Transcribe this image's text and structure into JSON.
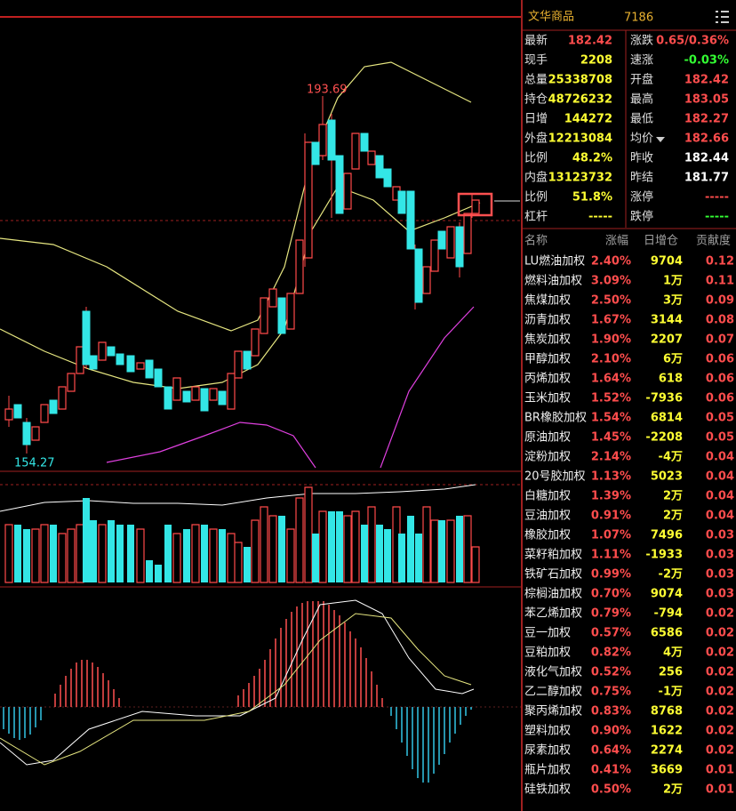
{
  "header": {
    "title": "文华商品",
    "code": "7186"
  },
  "chart": {
    "high_label": "193.69",
    "low_label": "154.27"
  },
  "quote": {
    "rows": [
      {
        "label": "最新",
        "value": "182.42",
        "color": "#ff4d4d",
        "label2": "涨跌",
        "value2": "0.65/0.36%",
        "color2": "#ff4d4d"
      },
      {
        "label": "现手",
        "value": "2208",
        "color": "#ffff33",
        "label2": "速涨",
        "value2": "-0.03%",
        "color2": "#33ff33"
      },
      {
        "label": "总量",
        "value": "25338708",
        "color": "#ffff33",
        "label2": "开盘",
        "value2": "182.42",
        "color2": "#ff4d4d"
      },
      {
        "label": "持仓",
        "value": "48726232",
        "color": "#ffff33",
        "label2": "最高",
        "value2": "183.05",
        "color2": "#ff4d4d"
      },
      {
        "label": "日增",
        "value": "144272",
        "color": "#ffff33",
        "label2": "最低",
        "value2": "182.27",
        "color2": "#ff4d4d"
      },
      {
        "label": "外盘",
        "value": "12213084",
        "color": "#ffff33",
        "label2": "均价",
        "value2": "182.66",
        "color2": "#ff4d4d"
      },
      {
        "label": "比例",
        "value": "48.2%",
        "color": "#ffff33",
        "label2": "昨收",
        "value2": "182.44",
        "color2": "#ffffff"
      },
      {
        "label": "内盘",
        "value": "13123732",
        "color": "#ffff33",
        "label2": "昨结",
        "value2": "181.77",
        "color2": "#ffffff"
      },
      {
        "label": "比例",
        "value": "51.8%",
        "color": "#ffff33",
        "label2": "涨停",
        "value2": "-----",
        "color2": "#ff4d4d"
      },
      {
        "label": "杠杆",
        "value": "-----",
        "color": "#ffff33",
        "label2": "跌停",
        "value2": "-----",
        "color2": "#33ff33"
      }
    ]
  },
  "table": {
    "header": [
      "名称",
      "涨幅",
      "日增仓",
      "贡献度"
    ],
    "rows": [
      [
        "LU燃油加权",
        "2.40%",
        "9704",
        "0.12"
      ],
      [
        "燃料油加权",
        "3.09%",
        "1万",
        "0.11"
      ],
      [
        "焦煤加权",
        "2.50%",
        "3万",
        "0.09"
      ],
      [
        "沥青加权",
        "1.67%",
        "3144",
        "0.08"
      ],
      [
        "焦炭加权",
        "1.90%",
        "2207",
        "0.07"
      ],
      [
        "甲醇加权",
        "2.10%",
        "6万",
        "0.06"
      ],
      [
        "丙烯加权",
        "1.64%",
        "618",
        "0.06"
      ],
      [
        "玉米加权",
        "1.52%",
        "-7936",
        "0.06"
      ],
      [
        "BR橡胶加权",
        "1.54%",
        "6814",
        "0.05"
      ],
      [
        "原油加权",
        "1.45%",
        "-2208",
        "0.05"
      ],
      [
        "淀粉加权",
        "2.14%",
        "-4万",
        "0.04"
      ],
      [
        "20号胶加权",
        "1.13%",
        "5023",
        "0.04"
      ],
      [
        "白糖加权",
        "1.39%",
        "2万",
        "0.04"
      ],
      [
        "豆油加权",
        "0.91%",
        "2万",
        "0.04"
      ],
      [
        "橡胶加权",
        "1.07%",
        "7496",
        "0.03"
      ],
      [
        "菜籽粕加权",
        "1.11%",
        "-1933",
        "0.03"
      ],
      [
        "铁矿石加权",
        "0.99%",
        "-2万",
        "0.03"
      ],
      [
        "棕榈油加权",
        "0.70%",
        "9074",
        "0.03"
      ],
      [
        "苯乙烯加权",
        "0.79%",
        "-794",
        "0.02"
      ],
      [
        "豆一加权",
        "0.57%",
        "6586",
        "0.02"
      ],
      [
        "豆粕加权",
        "0.82%",
        "4万",
        "0.02"
      ],
      [
        "液化气加权",
        "0.52%",
        "256",
        "0.02"
      ],
      [
        "乙二醇加权",
        "0.75%",
        "-1万",
        "0.02"
      ],
      [
        "聚丙烯加权",
        "0.83%",
        "8768",
        "0.02"
      ],
      [
        "塑料加权",
        "0.90%",
        "1622",
        "0.02"
      ],
      [
        "尿素加权",
        "0.64%",
        "2274",
        "0.02"
      ],
      [
        "瓶片加权",
        "0.41%",
        "3669",
        "0.01"
      ],
      [
        "硅铁加权",
        "0.50%",
        "2万",
        "0.01"
      ]
    ]
  }
}
